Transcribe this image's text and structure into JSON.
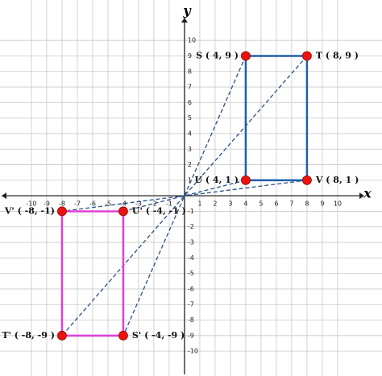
{
  "chart_data": {
    "type": "polygon",
    "xlabel": "x",
    "ylabel": "y",
    "xlim": [
      -12.05,
      12.9
    ],
    "ylim": [
      -11.6,
      12.6
    ],
    "xticks": [
      -10,
      -9,
      -8,
      -7,
      -6,
      -5,
      -4,
      -3,
      -2,
      -1,
      1,
      2,
      3,
      4,
      5,
      6,
      7,
      8,
      9,
      10
    ],
    "yticks": [
      -10,
      -9,
      -8,
      -7,
      -6,
      -5,
      -4,
      -3,
      -2,
      -1,
      1,
      2,
      3,
      4,
      5,
      6,
      7,
      8,
      9,
      10
    ],
    "grid": true,
    "connectors": "dashed",
    "point_color": "#e8150f",
    "series": [
      {
        "color": "#1f5fa8",
        "x": [
          4,
          8,
          8,
          4
        ],
        "y": [
          9,
          9,
          1,
          1
        ],
        "point_labels": [
          "S ( 4, 9 )",
          "T ( 8, 9 )",
          "V ( 8, 1 )",
          "U ( 4, 1 )"
        ]
      },
      {
        "color": "#e040d8",
        "x": [
          -4,
          -8,
          -8,
          -4
        ],
        "y": [
          -9,
          -9,
          -1,
          -1
        ],
        "point_labels": [
          "S' ( -4, -9 )",
          "T' ( -8, -9 )",
          "V' ( -8, -1)",
          "U' ( -4, -1 )"
        ]
      }
    ]
  }
}
